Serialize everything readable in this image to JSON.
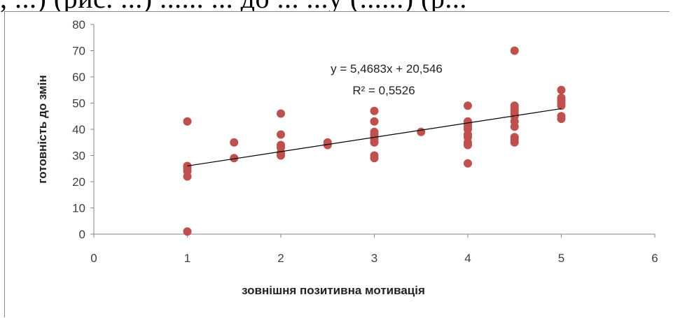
{
  "cropped_header": ", ...) (рис. ...) ...... ... до ... ...у (......) (р...",
  "chart_data": {
    "type": "scatter",
    "xlabel": "зовнішня позитивна мотивація",
    "ylabel": "готовність до змін",
    "xlim": [
      0,
      6
    ],
    "ylim": [
      0,
      80
    ],
    "x_ticks": [
      "0",
      "1",
      "2",
      "3",
      "4",
      "5",
      "6"
    ],
    "y_ticks": [
      "0",
      "10",
      "20",
      "30",
      "40",
      "50",
      "60",
      "70",
      "80"
    ],
    "grid": false,
    "marker_color": "#c0504d",
    "trendline_color": "#000000",
    "equation": "y = 5,4683x + 20,546",
    "r_squared": "R² = 0,5526",
    "trendline": {
      "slope": 5.4683,
      "intercept": 20.546,
      "x_range": [
        1,
        5
      ]
    },
    "points": [
      [
        1,
        43
      ],
      [
        1,
        26
      ],
      [
        1,
        25
      ],
      [
        1,
        24
      ],
      [
        1,
        22
      ],
      [
        1,
        1
      ],
      [
        1.5,
        35
      ],
      [
        1.5,
        29
      ],
      [
        2,
        46
      ],
      [
        2,
        38
      ],
      [
        2,
        34
      ],
      [
        2,
        33
      ],
      [
        2,
        31
      ],
      [
        2,
        30
      ],
      [
        2.5,
        35
      ],
      [
        2.5,
        34
      ],
      [
        3,
        47
      ],
      [
        3,
        43
      ],
      [
        3,
        39
      ],
      [
        3,
        38
      ],
      [
        3,
        37
      ],
      [
        3,
        36
      ],
      [
        3,
        35
      ],
      [
        3,
        30
      ],
      [
        3,
        29
      ],
      [
        3.5,
        39
      ],
      [
        4,
        49
      ],
      [
        4,
        43
      ],
      [
        4,
        42
      ],
      [
        4,
        41
      ],
      [
        4,
        40
      ],
      [
        4,
        38
      ],
      [
        4,
        37
      ],
      [
        4,
        35
      ],
      [
        4,
        34
      ],
      [
        4,
        27
      ],
      [
        4.5,
        70
      ],
      [
        4.5,
        49
      ],
      [
        4.5,
        48
      ],
      [
        4.5,
        47
      ],
      [
        4.5,
        46
      ],
      [
        4.5,
        45
      ],
      [
        4.5,
        43
      ],
      [
        4.5,
        41
      ],
      [
        4.5,
        37
      ],
      [
        4.5,
        36
      ],
      [
        4.5,
        35
      ],
      [
        5,
        55
      ],
      [
        5,
        52
      ],
      [
        5,
        51
      ],
      [
        5,
        50
      ],
      [
        5,
        49
      ],
      [
        5,
        45
      ],
      [
        5,
        44
      ]
    ]
  }
}
